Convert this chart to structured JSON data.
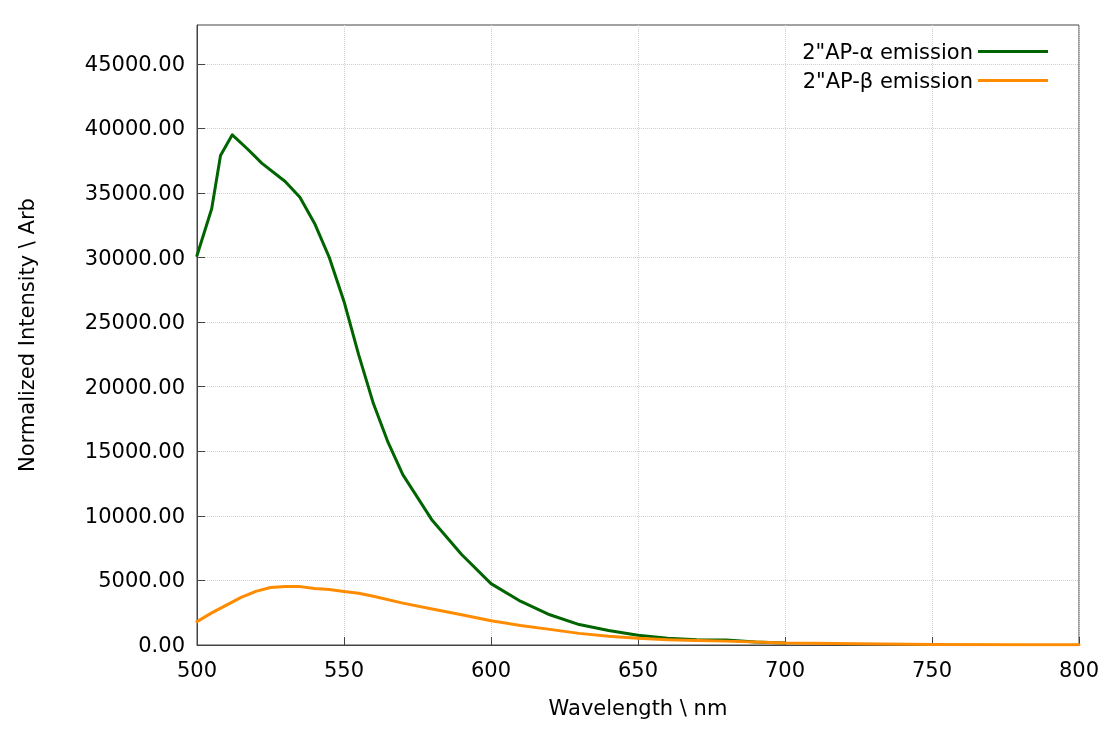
{
  "chart_data": {
    "type": "line",
    "xlabel": "Wavelength \\ nm",
    "ylabel": "Normalized Intensity \\ Arb",
    "xlim": [
      500,
      800
    ],
    "xticks": [
      500,
      550,
      600,
      650,
      700,
      750,
      800
    ],
    "ylim": [
      0,
      48000
    ],
    "yticks": [
      {
        "value": 0,
        "label": "0.00"
      },
      {
        "value": 5000,
        "label": "5000.00"
      },
      {
        "value": 10000,
        "label": "10000.00"
      },
      {
        "value": 15000,
        "label": "15000.00"
      },
      {
        "value": 20000,
        "label": "20000.00"
      },
      {
        "value": 25000,
        "label": "25000.00"
      },
      {
        "value": 30000,
        "label": "30000.00"
      },
      {
        "value": 35000,
        "label": "35000.00"
      },
      {
        "value": 40000,
        "label": "40000.00"
      },
      {
        "value": 45000,
        "label": "45000.00"
      }
    ],
    "grid": true,
    "legend": "top right",
    "marker": "none",
    "line_style": "solid",
    "series": [
      {
        "name": "2\"AP-α emission",
        "color": "#006400",
        "x": [
          500,
          505,
          508,
          512,
          517,
          522,
          530,
          535,
          540,
          545,
          550,
          555,
          560,
          565,
          570,
          580,
          590,
          600,
          610,
          620,
          630,
          640,
          650,
          660,
          670,
          680,
          690,
          700
        ],
        "values": [
          30150,
          33770,
          37900,
          39500,
          38440,
          37310,
          35880,
          34670,
          32640,
          30000,
          26600,
          22460,
          18690,
          15680,
          13190,
          9650,
          7010,
          4750,
          3390,
          2340,
          1580,
          1130,
          750,
          530,
          410,
          380,
          230,
          150
        ]
      },
      {
        "name": "2\"AP-β emission",
        "color": "#ff8c00",
        "x": [
          500,
          505,
          510,
          515,
          520,
          525,
          530,
          535,
          540,
          545,
          550,
          555,
          560,
          570,
          580,
          590,
          600,
          610,
          620,
          630,
          640,
          650,
          660,
          670,
          680,
          700,
          750,
          800
        ],
        "values": [
          1810,
          2490,
          3090,
          3690,
          4150,
          4450,
          4520,
          4520,
          4370,
          4300,
          4150,
          4000,
          3770,
          3240,
          2790,
          2340,
          1880,
          1510,
          1210,
          900,
          680,
          530,
          410,
          340,
          300,
          150,
          40,
          10
        ]
      }
    ]
  }
}
